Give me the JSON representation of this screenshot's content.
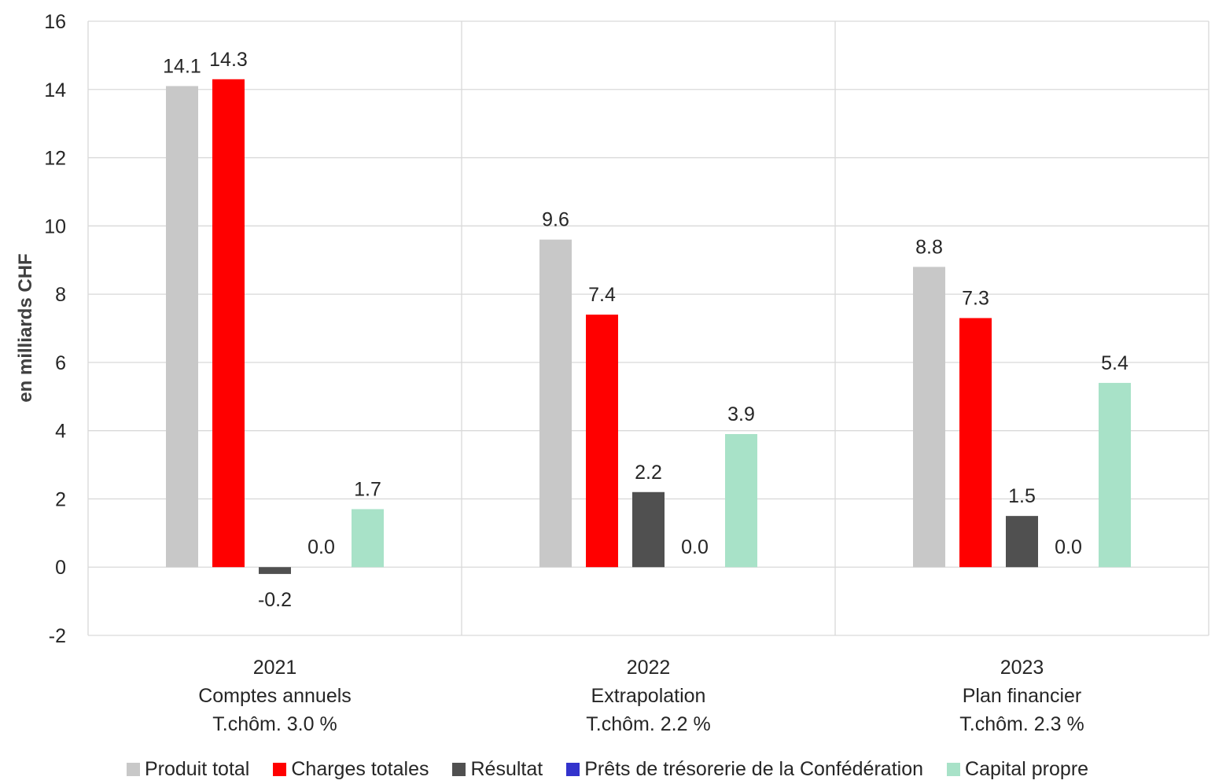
{
  "chart_data": {
    "type": "bar",
    "ylabel": "en milliards CHF",
    "ylim": [
      -2,
      16
    ],
    "yticks": [
      -2,
      0,
      2,
      4,
      6,
      8,
      10,
      12,
      14,
      16
    ],
    "grid": true,
    "legend_position": "bottom",
    "categories": [
      [
        "2021",
        "Comptes annuels",
        "T.chôm. 3.0 %"
      ],
      [
        "2022",
        "Extrapolation",
        "T.chôm. 2.2 %"
      ],
      [
        "2023",
        "Plan financier",
        "T.chôm. 2.3 %"
      ]
    ],
    "series": [
      {
        "name": "Produit total",
        "color": "#C8C8C8",
        "values": [
          14.1,
          9.6,
          8.8
        ],
        "labels": [
          "14.1",
          "9.6",
          "8.8"
        ]
      },
      {
        "name": "Charges totales",
        "color": "#FF0000",
        "values": [
          14.3,
          7.4,
          7.3
        ],
        "labels": [
          "14.3",
          "7.4",
          "7.3"
        ]
      },
      {
        "name": "Résultat",
        "color": "#505050",
        "values": [
          -0.2,
          2.2,
          1.5
        ],
        "labels": [
          "-0.2",
          "2.2",
          "1.5"
        ]
      },
      {
        "name": "Prêts de trésorerie de la Confédération",
        "color": "#3333CC",
        "values": [
          0.0,
          0.0,
          0.0
        ],
        "labels": [
          "0.0",
          "0.0",
          "0.0"
        ]
      },
      {
        "name": "Capital propre",
        "color": "#A8E2C8",
        "values": [
          1.7,
          3.9,
          5.4
        ],
        "labels": [
          "1.7",
          "3.9",
          "5.4"
        ]
      }
    ]
  }
}
